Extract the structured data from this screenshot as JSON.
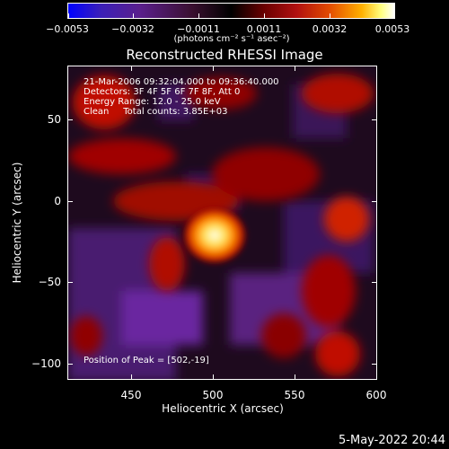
{
  "colorbar": {
    "labels": [
      "−0.0053",
      "−0.0032",
      "−0.0011",
      "0.0011",
      "0.0032",
      "0.0053"
    ],
    "unit": "(photons cm⁻² s⁻¹ asec⁻²)"
  },
  "title": "Reconstructed RHESSI Image",
  "annotations": {
    "line1": "21-Mar-2006 09:32:04.000 to 09:36:40.000",
    "line2": "Detectors: 3F 4F 5F 6F 7F 8F, Att 0",
    "line3": "Energy Range: 12.0 - 25.0 keV",
    "line4": "Clean     Total counts: 3.85E+03",
    "peak": "Position of Peak = [502,-19]"
  },
  "axes": {
    "xlabel": "Heliocentric X (arcsec)",
    "ylabel": "Heliocentric Y (arcsec)",
    "xticks": [
      "450",
      "500",
      "550",
      "600"
    ],
    "yticks": [
      "50",
      "0",
      "−50",
      "−100"
    ]
  },
  "datestamp": "5-May-2022 20:44",
  "chart_data": {
    "type": "heatmap",
    "title": "Reconstructed RHESSI Image",
    "xlabel": "Heliocentric X (arcsec)",
    "ylabel": "Heliocentric Y (arcsec)",
    "xlim": [
      412,
      600
    ],
    "ylim": [
      -110,
      70
    ],
    "colorbar_range": [
      -0.0053,
      0.0053
    ],
    "peak": {
      "x": 502,
      "y": -19
    }
  }
}
